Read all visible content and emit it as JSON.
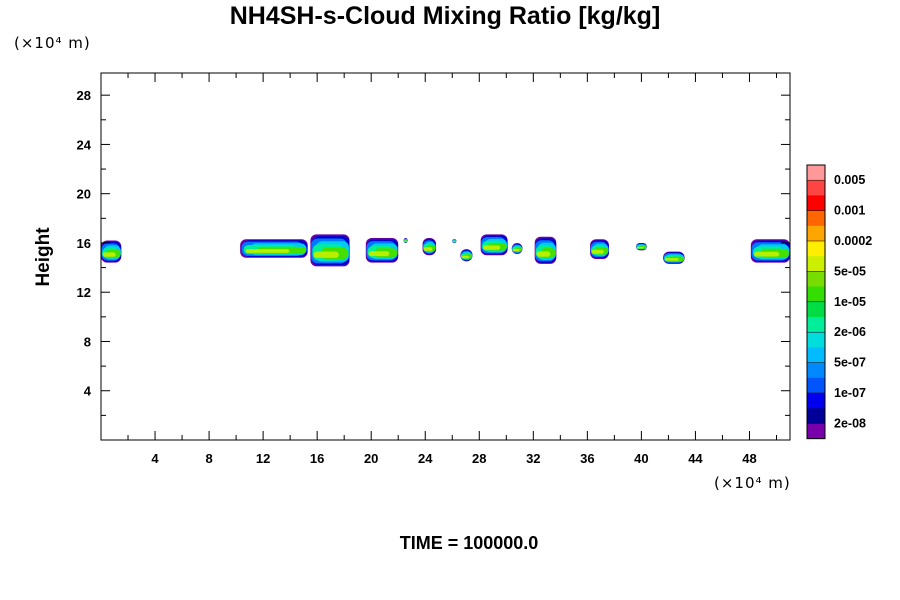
{
  "chart_data": {
    "type": "heatmap",
    "title": "NH4SH-s-Cloud Mixing Ratio [kg/kg]",
    "xlabel": "",
    "ylabel": "Height",
    "x_unit": "(×10⁴ m)",
    "y_unit": "(×10⁴ m)",
    "xlim": [
      0,
      51
    ],
    "ylim": [
      0,
      29.8
    ],
    "x_ticks": [
      4,
      8,
      12,
      16,
      20,
      24,
      28,
      32,
      36,
      40,
      44,
      48
    ],
    "y_ticks": [
      4,
      8,
      12,
      16,
      20,
      24,
      28
    ],
    "colorbar": {
      "labels": [
        "0.005",
        "0.001",
        "0.0002",
        "5e-05",
        "1e-05",
        "2e-06",
        "5e-07",
        "1e-07",
        "2e-08"
      ],
      "colors": [
        "#ff9999",
        "#ff4444",
        "#ff0000",
        "#ff6600",
        "#ffa500",
        "#ffee00",
        "#ccee00",
        "#77dd00",
        "#33dd00",
        "#00dd44",
        "#00ee99",
        "#00dddd",
        "#00bbff",
        "#0088ff",
        "#0055ff",
        "#0000ee",
        "#000099",
        "#7700aa"
      ]
    },
    "cloud_features": [
      {
        "x": [
          0,
          1.5
        ],
        "y": [
          14.4,
          16.2
        ]
      },
      {
        "x": [
          10.3,
          15.3
        ],
        "y": [
          14.8,
          16.3
        ]
      },
      {
        "x": [
          15.5,
          18.4
        ],
        "y": [
          14.1,
          16.7
        ]
      },
      {
        "x": [
          19.6,
          22.0
        ],
        "y": [
          14.4,
          16.4
        ]
      },
      {
        "x": [
          22.4,
          22.7
        ],
        "y": [
          16.0,
          16.4
        ]
      },
      {
        "x": [
          23.8,
          24.8
        ],
        "y": [
          15.0,
          16.4
        ]
      },
      {
        "x": [
          26.0,
          26.3
        ],
        "y": [
          16.0,
          16.3
        ]
      },
      {
        "x": [
          26.6,
          27.5
        ],
        "y": [
          14.5,
          15.5
        ]
      },
      {
        "x": [
          28.1,
          30.1
        ],
        "y": [
          15.0,
          16.7
        ]
      },
      {
        "x": [
          30.4,
          31.2
        ],
        "y": [
          15.1,
          16.0
        ]
      },
      {
        "x": [
          32.1,
          33.7
        ],
        "y": [
          14.3,
          16.5
        ]
      },
      {
        "x": [
          36.2,
          37.6
        ],
        "y": [
          14.7,
          16.3
        ]
      },
      {
        "x": [
          39.6,
          40.4
        ],
        "y": [
          15.4,
          16.0
        ]
      },
      {
        "x": [
          41.6,
          43.2
        ],
        "y": [
          14.3,
          15.3
        ]
      },
      {
        "x": [
          48.1,
          51.0
        ],
        "y": [
          14.4,
          16.3
        ]
      }
    ],
    "grid": false,
    "legend_position": "right"
  },
  "footer": {
    "time_label": "TIME = 100000.0"
  }
}
